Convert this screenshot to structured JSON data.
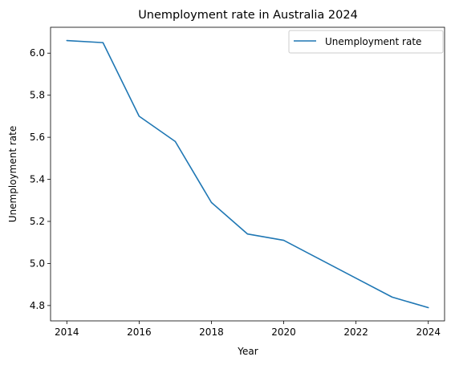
{
  "chart_data": {
    "type": "line",
    "title": "Unemployment rate in Australia 2024",
    "xlabel": "Year",
    "ylabel": "Unemployment rate",
    "xlim": [
      2013.55,
      2024.45
    ],
    "ylim": [
      4.727,
      6.123
    ],
    "xticks": [
      2014,
      2016,
      2018,
      2020,
      2022,
      2024
    ],
    "yticks": [
      4.8,
      5.0,
      5.2,
      5.4,
      5.6,
      5.8,
      6.0
    ],
    "grid": false,
    "legend": "top-right",
    "series": [
      {
        "name": "Unemployment rate",
        "color": "#1f77b4",
        "x": [
          2014,
          2015,
          2016,
          2017,
          2018,
          2019,
          2020,
          2021,
          2022,
          2023,
          2024
        ],
        "y": [
          6.06,
          6.05,
          5.7,
          5.58,
          5.29,
          5.14,
          5.11,
          5.02,
          4.93,
          4.84,
          4.79
        ]
      }
    ]
  }
}
